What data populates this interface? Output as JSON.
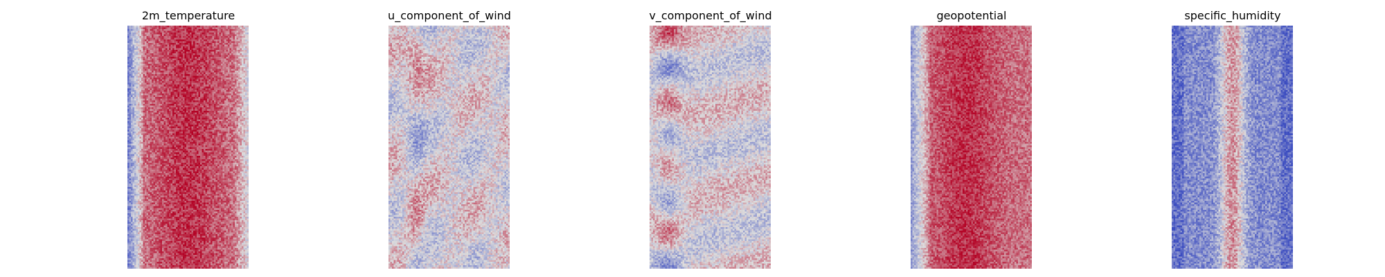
{
  "figure": {
    "panels": [
      {
        "title": "2m_temperature"
      },
      {
        "title": "u_component_of_wind"
      },
      {
        "title": "v_component_of_wind"
      },
      {
        "title": "geopotential"
      },
      {
        "title": "specific_humidity"
      }
    ]
  },
  "chart_data": [
    {
      "type": "heatmap",
      "title": "2m_temperature",
      "colormap": "coolwarm",
      "axes_visible": false,
      "grid": false,
      "pattern": "predominantly warm (light-to-deep red) field with cooler blue speckle along the left and right edges",
      "low_color": "#3b4cc0",
      "mid_color": "#dddddd",
      "high_color": "#b40426"
    },
    {
      "type": "heatmap",
      "title": "u_component_of_wind",
      "colormap": "coolwarm",
      "axes_visible": false,
      "grid": false,
      "pattern": "mostly neutral grey field with scattered red streaks and blue patches",
      "low_color": "#3b4cc0",
      "mid_color": "#dddddd",
      "high_color": "#b40426"
    },
    {
      "type": "heatmap",
      "title": "v_component_of_wind",
      "colormap": "coolwarm",
      "axes_visible": false,
      "grid": false,
      "pattern": "mostly neutral grey field with red and blue blotches concentrated on the left side",
      "low_color": "#3b4cc0",
      "mid_color": "#dddddd",
      "high_color": "#b40426"
    },
    {
      "type": "heatmap",
      "title": "geopotential",
      "colormap": "coolwarm",
      "axes_visible": false,
      "grid": false,
      "pattern": "warm red field, deepest in the centre, with light/blue speckle on the left edge",
      "low_color": "#3b4cc0",
      "mid_color": "#dddddd",
      "high_color": "#b40426"
    },
    {
      "type": "heatmap",
      "title": "specific_humidity",
      "colormap": "coolwarm",
      "axes_visible": false,
      "grid": false,
      "pattern": "predominantly blue field with a narrow red band running vertically through the centre",
      "low_color": "#3b4cc0",
      "mid_color": "#dddddd",
      "high_color": "#b40426"
    }
  ]
}
